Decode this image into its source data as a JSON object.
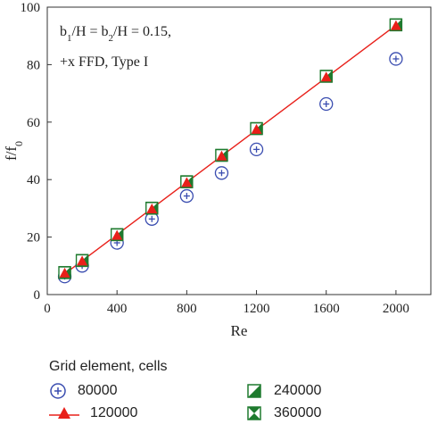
{
  "chart_data": {
    "type": "scatter",
    "xlabel": "Re",
    "ylabel": "f/f",
    "ylabel_sub": "0",
    "xlim": [
      0,
      2200
    ],
    "ylim": [
      0,
      100
    ],
    "xticks": [
      0,
      400,
      800,
      1200,
      1600,
      2000
    ],
    "yticks": [
      0,
      20,
      40,
      60,
      80,
      100
    ],
    "annotation_line1": {
      "b": "b",
      "s1": "1",
      "mid": "/H = b",
      "s2": "2",
      "end": "/H = 0.15,"
    },
    "annotation_line2": "+x FFD, Type I",
    "legend_title": "Grid element, cells",
    "series": [
      {
        "name": "80000",
        "marker": "circle-plus",
        "color": "#3a4db0",
        "x": [
          100,
          200,
          400,
          600,
          800,
          1000,
          1200,
          1600,
          2000
        ],
        "y": [
          6.3,
          10.0,
          18.0,
          26.3,
          34.3,
          42.3,
          50.5,
          66.3,
          82.0
        ]
      },
      {
        "name": "120000",
        "marker": "triangle-line",
        "color": "#e8201a",
        "x": [
          100,
          200,
          400,
          600,
          800,
          1000,
          1200,
          1600,
          2000
        ],
        "y": [
          7.5,
          11.7,
          20.6,
          29.8,
          39.0,
          48.2,
          57.5,
          75.7,
          93.6
        ]
      },
      {
        "name": "240000",
        "marker": "square-half",
        "color": "#1e7a2e",
        "x": [
          100,
          200,
          400,
          600,
          800,
          1000,
          1200,
          1600,
          2000
        ],
        "y": [
          7.6,
          11.8,
          20.8,
          30.0,
          39.2,
          48.4,
          57.7,
          75.9,
          93.8
        ]
      },
      {
        "name": "360000",
        "marker": "square-hourglass",
        "color": "#1e7a2e",
        "x": [
          100,
          200,
          400,
          600,
          800,
          1000,
          1200,
          1600,
          2000
        ],
        "y": [
          7.7,
          11.9,
          20.9,
          30.1,
          39.3,
          48.5,
          57.8,
          76.0,
          93.9
        ]
      }
    ]
  }
}
